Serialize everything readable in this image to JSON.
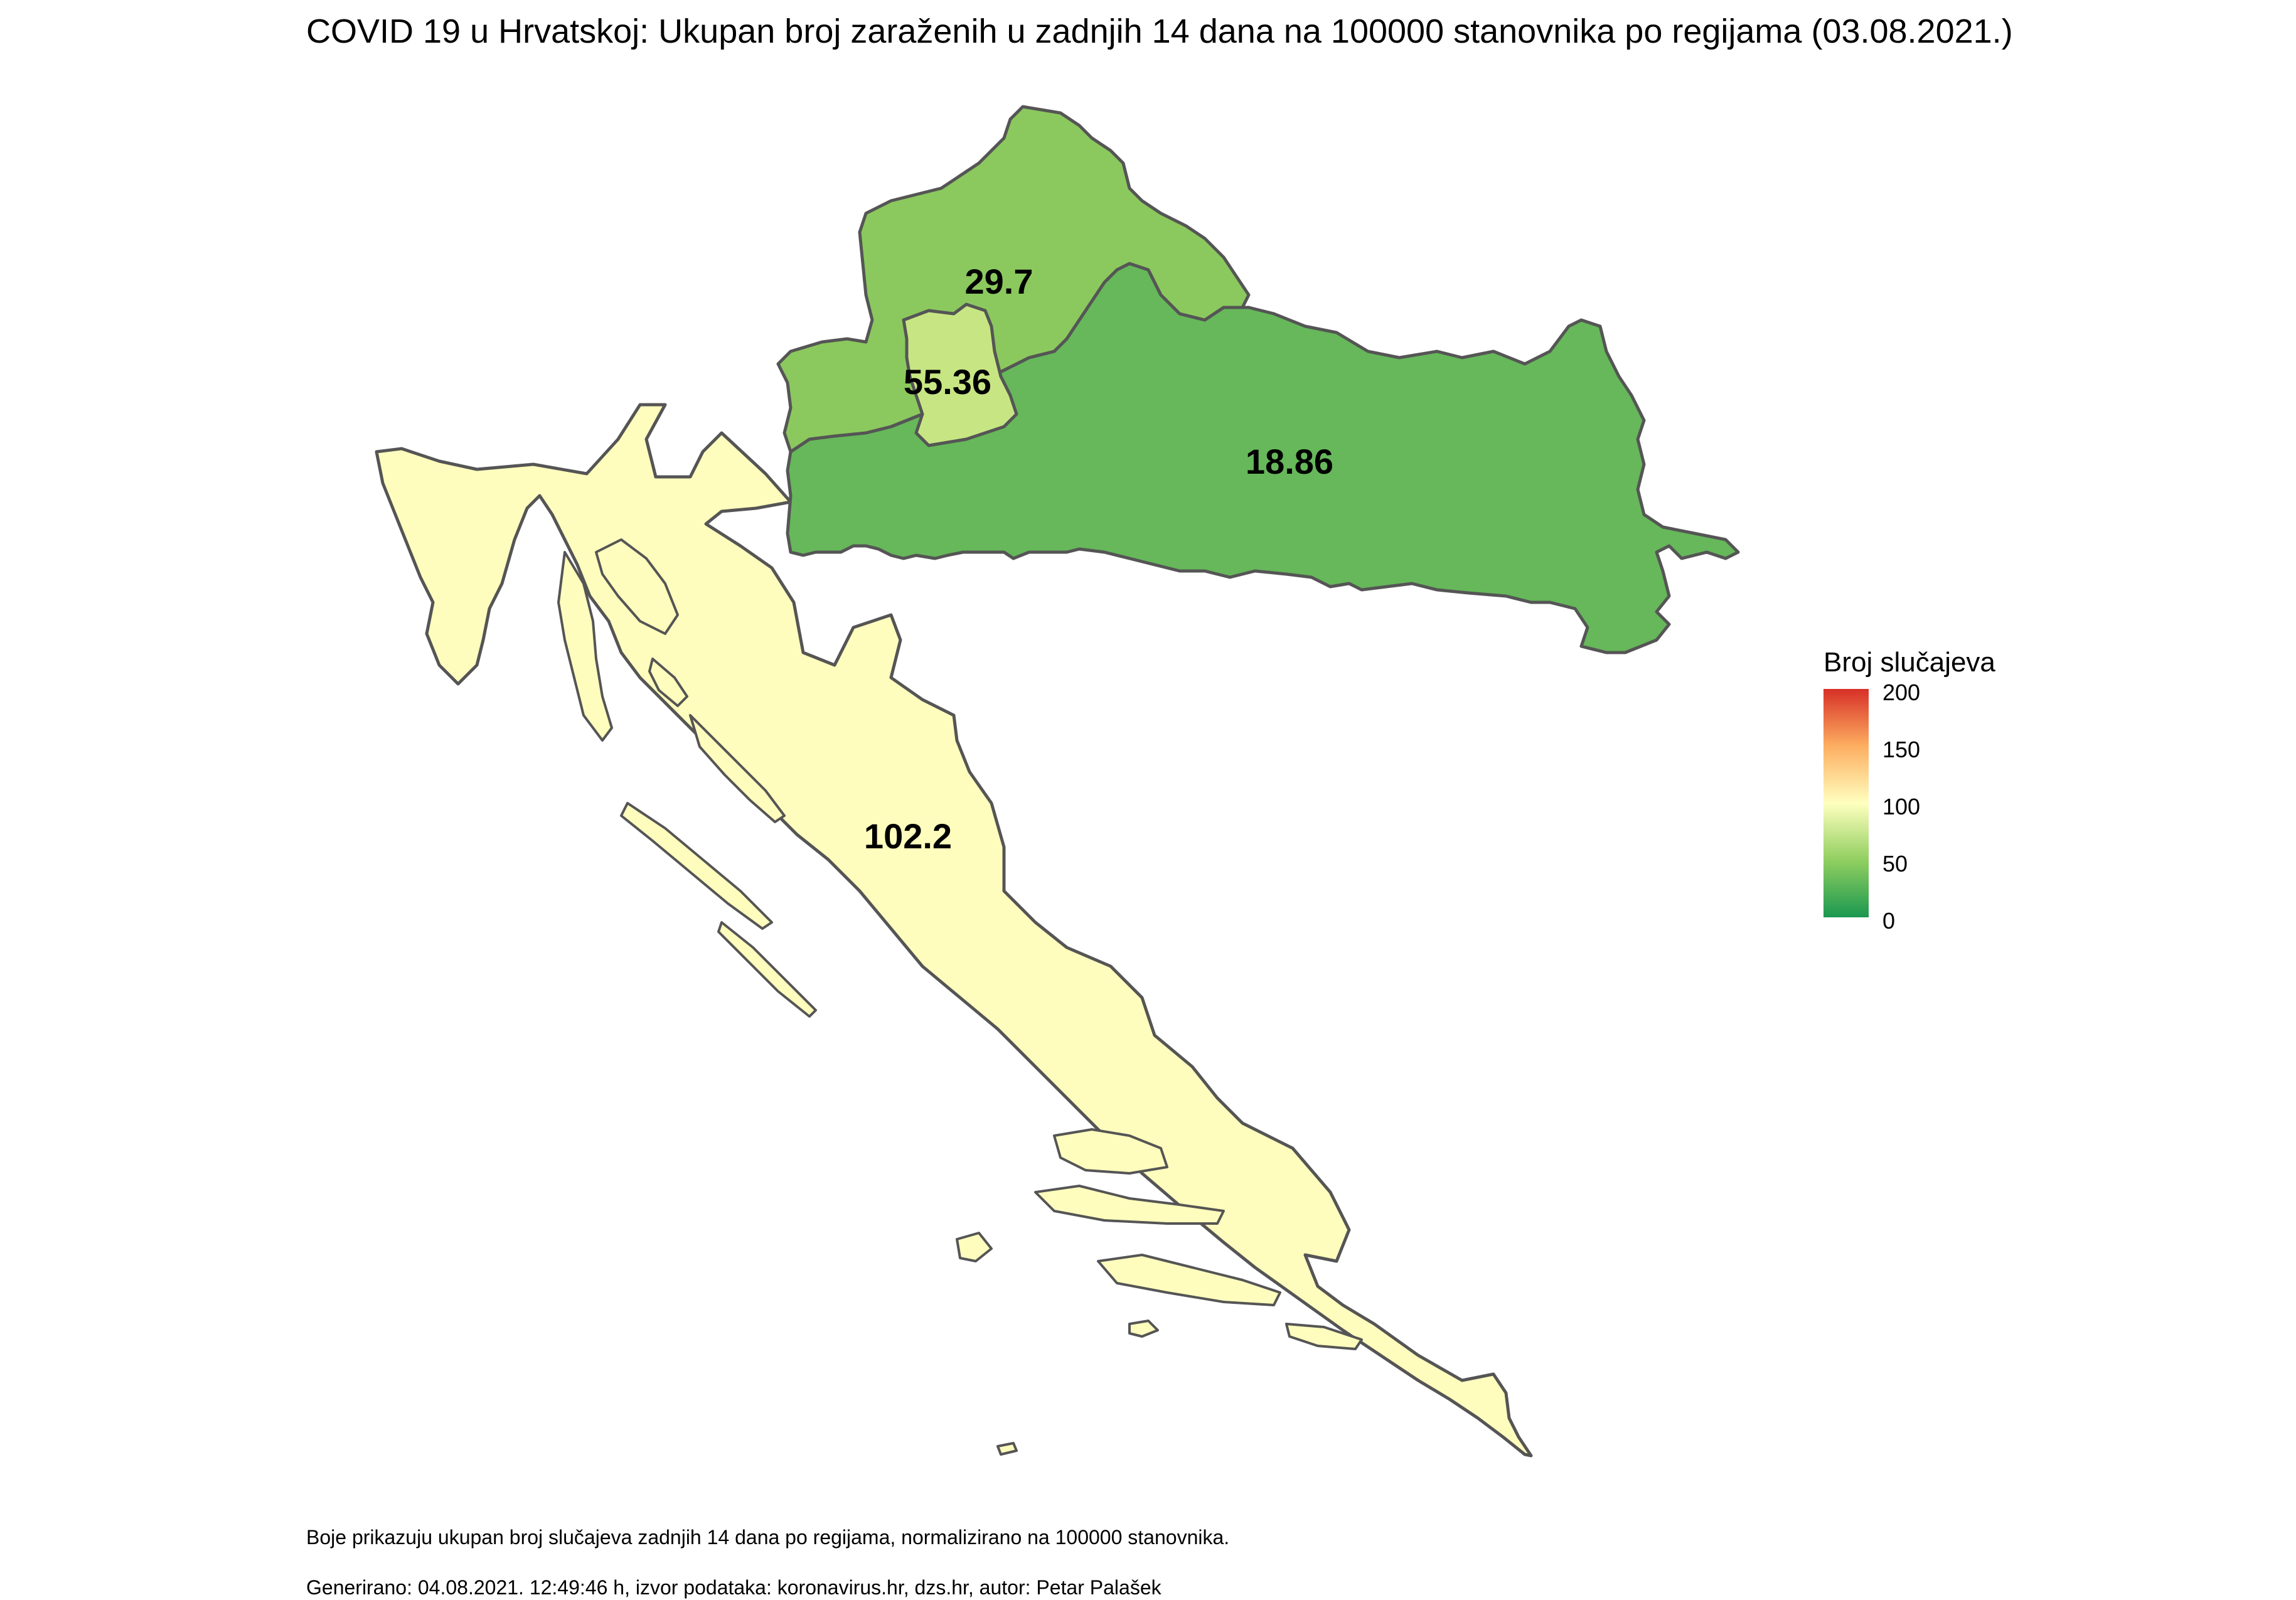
{
  "title": "COVID 19 u Hrvatskoj: Ukupan broj zaraženih u zadnjih 14 dana na 100000 stanovnika po regijama (03.08.2021.)",
  "regions": [
    {
      "value": 18.86,
      "label": "18.86",
      "fill": "#66b85a"
    },
    {
      "value": 29.7,
      "label": "29.7",
      "fill": "#8bc95e"
    },
    {
      "value": 55.36,
      "label": "55.36",
      "fill": "#c7e683"
    },
    {
      "value": 102.2,
      "label": "102.2",
      "fill": "#fffdbd"
    }
  ],
  "legend": {
    "title": "Broj slučajeva",
    "min": 0,
    "max": 200,
    "ticks": [
      "200",
      "150",
      "100",
      "50",
      "0"
    ],
    "colors": [
      "#1a9850",
      "#91cf60",
      "#ffffbf",
      "#fdae61",
      "#d73027"
    ]
  },
  "captions": {
    "line1": "Boje prikazuju ukupan broj slučajeva zadnjih 14 dana po regijama, normalizirano na 100000 stanovnika.",
    "line2": "Generirano: 04.08.2021. 12:49:46 h, izvor podataka: koronavirus.hr, dzs.hr, autor: Petar Palašek"
  }
}
